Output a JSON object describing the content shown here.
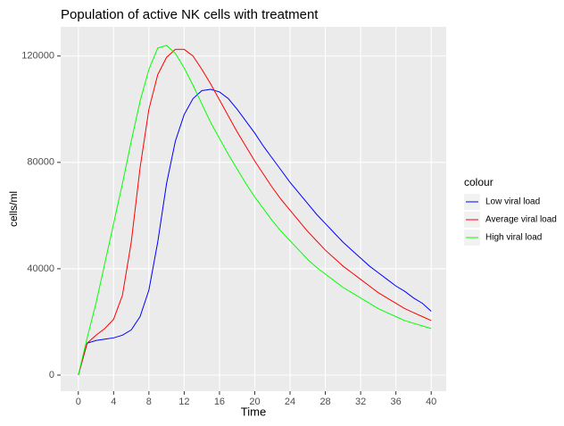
{
  "chart_data": {
    "type": "line",
    "title": "Population of active NK cells with treatment",
    "x_label": "Time",
    "y_label": "cells/ml",
    "legend_title": "colour",
    "legend_position": "right",
    "grid": true,
    "background": "#ebebeb",
    "grid_color": "#ffffff",
    "x": [
      0,
      1,
      2,
      3,
      4,
      5,
      6,
      7,
      8,
      9,
      10,
      11,
      12,
      13,
      14,
      15,
      16,
      17,
      18,
      19,
      20,
      21,
      22,
      23,
      24,
      25,
      26,
      27,
      28,
      29,
      30,
      31,
      32,
      33,
      34,
      35,
      36,
      37,
      38,
      39,
      40
    ],
    "xlim": [
      -2,
      41.7
    ],
    "xticks": [
      0,
      4,
      8,
      12,
      16,
      20,
      24,
      28,
      32,
      36,
      40
    ],
    "ylim": [
      -6050,
      131000
    ],
    "yticks": [
      0,
      40000,
      80000,
      120000
    ],
    "series": [
      {
        "name": "Low viral load",
        "color": "#0000ff",
        "values": [
          0,
          12000,
          13000,
          13500,
          14000,
          15000,
          17000,
          22000,
          32000,
          50000,
          72000,
          88000,
          98000,
          104000,
          107000,
          107500,
          106500,
          104000,
          100000,
          95500,
          91000,
          86000,
          81500,
          77000,
          72500,
          68500,
          64500,
          60500,
          57000,
          53500,
          50000,
          47000,
          44000,
          41000,
          38500,
          36000,
          33500,
          31500,
          29000,
          27000,
          24000
        ]
      },
      {
        "name": "Average viral load",
        "color": "#ff0000",
        "values": [
          0,
          12000,
          15000,
          17500,
          21000,
          30000,
          50000,
          78000,
          100000,
          113000,
          119500,
          122500,
          122500,
          120000,
          115000,
          109500,
          103500,
          97500,
          91500,
          86000,
          80500,
          75500,
          70500,
          66000,
          62000,
          58000,
          54000,
          50500,
          47000,
          44000,
          41000,
          38500,
          36000,
          33500,
          31000,
          29000,
          27000,
          25000,
          23500,
          22000,
          20500
        ]
      },
      {
        "name": "High viral load",
        "color": "#00ff00",
        "values": [
          0,
          14000,
          27000,
          42000,
          57000,
          72000,
          88000,
          103000,
          115000,
          123000,
          124000,
          121000,
          115500,
          109000,
          102000,
          95000,
          89000,
          83000,
          77500,
          72000,
          67000,
          62500,
          58000,
          54000,
          50500,
          47000,
          43500,
          40500,
          38000,
          35500,
          33000,
          31000,
          29000,
          27000,
          25000,
          23500,
          22000,
          20500,
          19500,
          18500,
          17500
        ]
      }
    ]
  }
}
